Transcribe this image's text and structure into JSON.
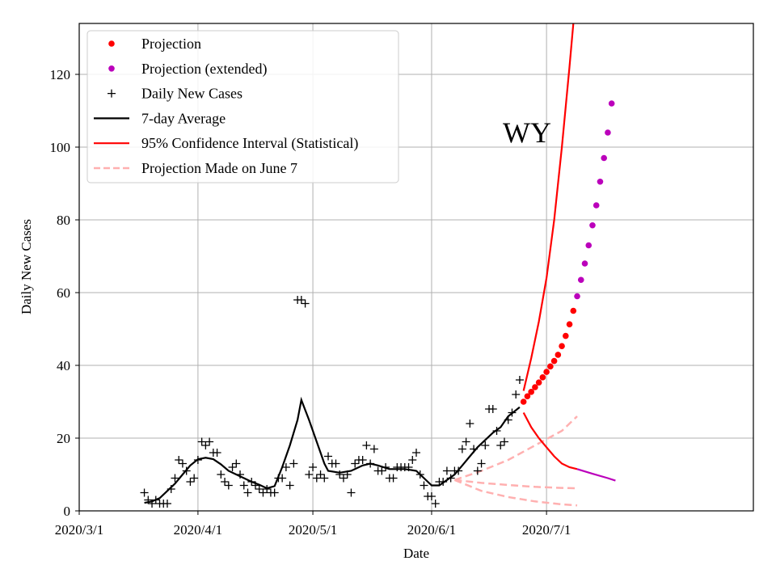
{
  "colors": {
    "projection": "#ff0000",
    "projection_extended": "#bb00bb",
    "daily": "#000000",
    "avg": "#000000",
    "ci": "#ff0000",
    "june7": "#ffb0b0",
    "grid": "#b0b0b0"
  },
  "chart_data": {
    "type": "line",
    "title": "",
    "annotation": "WY",
    "xlabel": "Date",
    "ylabel": "Daily New Cases",
    "x_ticks": [
      "2020/3/1",
      "2020/4/1",
      "2020/5/1",
      "2020/6/1",
      "2020/7/1"
    ],
    "y_ticks": [
      0,
      20,
      40,
      60,
      80,
      100,
      120
    ],
    "xlim": [
      "2020-03-01",
      "2020-08-24"
    ],
    "ylim": [
      0,
      134
    ],
    "grid": true,
    "legend_position": "top-left",
    "legend": [
      {
        "key": "projection",
        "label": "Projection"
      },
      {
        "key": "projection_extended",
        "label": "Projection (extended)"
      },
      {
        "key": "daily",
        "label": "Daily New Cases"
      },
      {
        "key": "avg",
        "label": "7-day Average"
      },
      {
        "key": "ci",
        "label": "95% Confidence Interval (Statistical)"
      },
      {
        "key": "june7",
        "label": "Projection Made on June 7"
      }
    ],
    "daily_cases": {
      "name": "Daily New Cases",
      "points": [
        [
          "2020-03-18",
          5
        ],
        [
          "2020-03-19",
          3
        ],
        [
          "2020-03-20",
          2
        ],
        [
          "2020-03-21",
          3
        ],
        [
          "2020-03-22",
          2
        ],
        [
          "2020-03-23",
          2
        ],
        [
          "2020-03-24",
          2
        ],
        [
          "2020-03-25",
          6
        ],
        [
          "2020-03-26",
          9
        ],
        [
          "2020-03-27",
          14
        ],
        [
          "2020-03-28",
          13
        ],
        [
          "2020-03-29",
          11
        ],
        [
          "2020-03-30",
          8
        ],
        [
          "2020-03-31",
          9
        ],
        [
          "2020-04-01",
          14
        ],
        [
          "2020-04-02",
          19
        ],
        [
          "2020-04-03",
          18
        ],
        [
          "2020-04-04",
          19
        ],
        [
          "2020-04-05",
          16
        ],
        [
          "2020-04-06",
          16
        ],
        [
          "2020-04-07",
          10
        ],
        [
          "2020-04-08",
          8
        ],
        [
          "2020-04-09",
          7
        ],
        [
          "2020-04-10",
          12
        ],
        [
          "2020-04-11",
          13
        ],
        [
          "2020-04-12",
          10
        ],
        [
          "2020-04-13",
          7
        ],
        [
          "2020-04-14",
          5
        ],
        [
          "2020-04-15",
          8
        ],
        [
          "2020-04-16",
          7
        ],
        [
          "2020-04-17",
          6
        ],
        [
          "2020-04-18",
          5
        ],
        [
          "2020-04-19",
          6
        ],
        [
          "2020-04-20",
          5
        ],
        [
          "2020-04-21",
          5
        ],
        [
          "2020-04-22",
          9
        ],
        [
          "2020-04-23",
          9
        ],
        [
          "2020-04-24",
          12
        ],
        [
          "2020-04-25",
          7
        ],
        [
          "2020-04-26",
          13
        ],
        [
          "2020-04-27",
          58
        ],
        [
          "2020-04-28",
          58
        ],
        [
          "2020-04-29",
          57
        ],
        [
          "2020-04-30",
          10
        ],
        [
          "2020-05-01",
          12
        ],
        [
          "2020-05-02",
          9
        ],
        [
          "2020-05-03",
          10
        ],
        [
          "2020-05-04",
          9
        ],
        [
          "2020-05-05",
          15
        ],
        [
          "2020-05-06",
          13
        ],
        [
          "2020-05-07",
          13
        ],
        [
          "2020-05-08",
          10
        ],
        [
          "2020-05-09",
          9
        ],
        [
          "2020-05-10",
          10
        ],
        [
          "2020-05-11",
          5
        ],
        [
          "2020-05-12",
          13
        ],
        [
          "2020-05-13",
          14
        ],
        [
          "2020-05-14",
          14
        ],
        [
          "2020-05-15",
          18
        ],
        [
          "2020-05-16",
          13
        ],
        [
          "2020-05-17",
          17
        ],
        [
          "2020-05-18",
          11
        ],
        [
          "2020-05-19",
          11
        ],
        [
          "2020-05-20",
          12
        ],
        [
          "2020-05-21",
          9
        ],
        [
          "2020-05-22",
          9
        ],
        [
          "2020-05-23",
          12
        ],
        [
          "2020-05-24",
          12
        ],
        [
          "2020-05-25",
          12
        ],
        [
          "2020-05-26",
          12
        ],
        [
          "2020-05-27",
          14
        ],
        [
          "2020-05-28",
          16
        ],
        [
          "2020-05-29",
          10
        ],
        [
          "2020-05-30",
          7
        ],
        [
          "2020-05-31",
          4
        ],
        [
          "2020-06-01",
          4
        ],
        [
          "2020-06-02",
          2
        ],
        [
          "2020-06-03",
          8
        ],
        [
          "2020-06-04",
          8
        ],
        [
          "2020-06-05",
          11
        ],
        [
          "2020-06-06",
          9
        ],
        [
          "2020-06-07",
          11
        ],
        [
          "2020-06-08",
          11
        ],
        [
          "2020-06-09",
          17
        ],
        [
          "2020-06-10",
          19
        ],
        [
          "2020-06-11",
          24
        ],
        [
          "2020-06-12",
          17
        ],
        [
          "2020-06-13",
          11
        ],
        [
          "2020-06-14",
          13
        ],
        [
          "2020-06-15",
          18
        ],
        [
          "2020-06-16",
          28
        ],
        [
          "2020-06-17",
          28
        ],
        [
          "2020-06-18",
          22
        ],
        [
          "2020-06-19",
          18
        ],
        [
          "2020-06-20",
          19
        ],
        [
          "2020-06-21",
          25
        ],
        [
          "2020-06-22",
          27
        ],
        [
          "2020-06-23",
          32
        ],
        [
          "2020-06-24",
          36
        ]
      ]
    },
    "seven_day_average": {
      "name": "7-day Average",
      "points": [
        [
          "2020-03-18",
          2.2
        ],
        [
          "2020-03-20",
          2.6
        ],
        [
          "2020-03-22",
          3.5
        ],
        [
          "2020-03-24",
          5.5
        ],
        [
          "2020-03-26",
          7.5
        ],
        [
          "2020-03-28",
          10
        ],
        [
          "2020-03-30",
          12.5
        ],
        [
          "2020-04-01",
          14.2
        ],
        [
          "2020-04-03",
          14.6
        ],
        [
          "2020-04-05",
          14.2
        ],
        [
          "2020-04-07",
          12.8
        ],
        [
          "2020-04-09",
          11
        ],
        [
          "2020-04-11",
          10
        ],
        [
          "2020-04-13",
          9
        ],
        [
          "2020-04-15",
          8
        ],
        [
          "2020-04-17",
          7.2
        ],
        [
          "2020-04-19",
          6.2
        ],
        [
          "2020-04-21",
          6.8
        ],
        [
          "2020-04-23",
          12
        ],
        [
          "2020-04-25",
          18
        ],
        [
          "2020-04-27",
          25
        ],
        [
          "2020-04-28",
          30.5
        ],
        [
          "2020-04-30",
          25
        ],
        [
          "2020-05-02",
          19
        ],
        [
          "2020-05-04",
          13
        ],
        [
          "2020-05-05",
          11
        ],
        [
          "2020-05-08",
          10.5
        ],
        [
          "2020-05-11",
          11
        ],
        [
          "2020-05-14",
          12.5
        ],
        [
          "2020-05-16",
          13
        ],
        [
          "2020-05-18",
          12.5
        ],
        [
          "2020-05-21",
          11.5
        ],
        [
          "2020-05-25",
          11.5
        ],
        [
          "2020-05-28",
          11
        ],
        [
          "2020-05-30",
          9
        ],
        [
          "2020-06-01",
          7
        ],
        [
          "2020-06-03",
          7
        ],
        [
          "2020-06-05",
          8.5
        ],
        [
          "2020-06-07",
          10
        ],
        [
          "2020-06-09",
          12.5
        ],
        [
          "2020-06-11",
          15
        ],
        [
          "2020-06-13",
          17.5
        ],
        [
          "2020-06-15",
          19.5
        ],
        [
          "2020-06-17",
          21.5
        ],
        [
          "2020-06-19",
          23
        ],
        [
          "2020-06-21",
          26
        ],
        [
          "2020-06-24",
          28.5
        ]
      ]
    },
    "projection": {
      "name": "Projection",
      "points": [
        [
          "2020-06-25",
          30
        ],
        [
          "2020-06-26",
          31.5
        ],
        [
          "2020-06-27",
          32.7
        ],
        [
          "2020-06-28",
          34
        ],
        [
          "2020-06-29",
          35.3
        ],
        [
          "2020-06-30",
          36.7
        ],
        [
          "2020-07-01",
          38.2
        ],
        [
          "2020-07-02",
          39.7
        ],
        [
          "2020-07-03",
          41.2
        ],
        [
          "2020-07-04",
          42.9
        ],
        [
          "2020-07-05",
          45.3
        ],
        [
          "2020-07-06",
          48.1
        ],
        [
          "2020-07-07",
          51.3
        ],
        [
          "2020-07-08",
          55
        ]
      ]
    },
    "projection_extended": {
      "name": "Projection (extended)",
      "points": [
        [
          "2020-07-09",
          59
        ],
        [
          "2020-07-10",
          63.5
        ],
        [
          "2020-07-11",
          68
        ],
        [
          "2020-07-12",
          73
        ],
        [
          "2020-07-13",
          78.5
        ],
        [
          "2020-07-14",
          84
        ],
        [
          "2020-07-15",
          90.5
        ],
        [
          "2020-07-16",
          97
        ],
        [
          "2020-07-17",
          104
        ],
        [
          "2020-07-18",
          112
        ]
      ]
    },
    "confidence_interval": {
      "name": "95% Confidence Interval (Statistical)",
      "upper": [
        [
          "2020-06-25",
          33
        ],
        [
          "2020-06-27",
          42
        ],
        [
          "2020-06-29",
          52
        ],
        [
          "2020-07-01",
          64
        ],
        [
          "2020-07-03",
          80
        ],
        [
          "2020-07-05",
          100
        ],
        [
          "2020-07-07",
          122
        ],
        [
          "2020-07-08",
          134
        ]
      ],
      "lower": [
        [
          "2020-06-25",
          27
        ],
        [
          "2020-06-27",
          23
        ],
        [
          "2020-06-29",
          20
        ],
        [
          "2020-07-01",
          17.5
        ],
        [
          "2020-07-03",
          15
        ],
        [
          "2020-07-05",
          13
        ],
        [
          "2020-07-07",
          12
        ],
        [
          "2020-07-09",
          11.5
        ]
      ],
      "lower_extended": [
        [
          "2020-07-09",
          11.5
        ],
        [
          "2020-07-13",
          10.2
        ],
        [
          "2020-07-17",
          9
        ],
        [
          "2020-07-19",
          8.3
        ]
      ]
    },
    "projection_june7": {
      "name": "Projection Made on June 7",
      "upper": [
        [
          "2020-06-07",
          8.5
        ],
        [
          "2020-06-14",
          11
        ],
        [
          "2020-06-21",
          14
        ],
        [
          "2020-06-28",
          18
        ],
        [
          "2020-07-05",
          22
        ],
        [
          "2020-07-09",
          26
        ]
      ],
      "middle": [
        [
          "2020-06-07",
          8.5
        ],
        [
          "2020-06-14",
          7.7
        ],
        [
          "2020-06-21",
          7.1
        ],
        [
          "2020-06-28",
          6.6
        ],
        [
          "2020-07-05",
          6.3
        ],
        [
          "2020-07-09",
          6.2
        ]
      ],
      "lower": [
        [
          "2020-06-07",
          8.5
        ],
        [
          "2020-06-14",
          5.5
        ],
        [
          "2020-06-21",
          3.8
        ],
        [
          "2020-06-28",
          2.6
        ],
        [
          "2020-07-05",
          1.8
        ],
        [
          "2020-07-09",
          1.5
        ]
      ]
    }
  }
}
